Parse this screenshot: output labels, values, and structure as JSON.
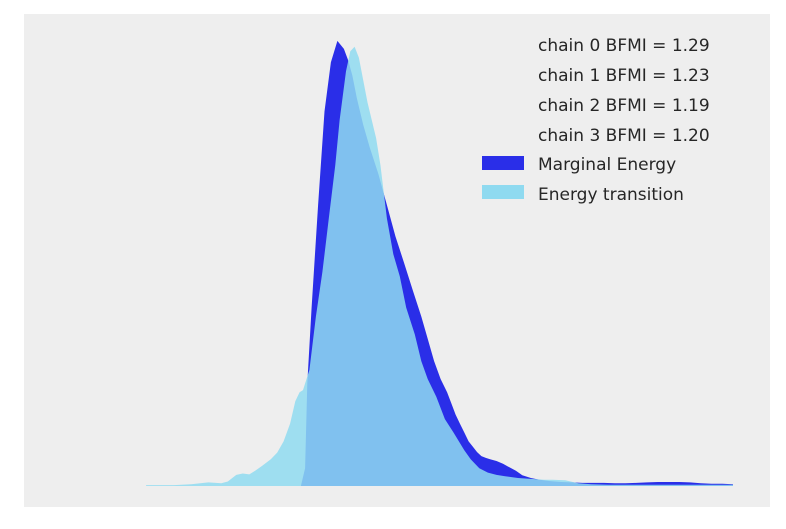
{
  "chart_data": {
    "type": "area",
    "title": "",
    "xlabel": "",
    "ylabel": "",
    "x_ticks_visible": false,
    "y_ticks_visible": false,
    "grid": false,
    "background": "#eeeeee",
    "legend": {
      "placement": "top-right",
      "bfmi_entries": [
        "chain  0 BFMI = 1.29",
        "chain  1 BFMI = 1.23",
        "chain  2 BFMI = 1.19",
        "chain  3 BFMI = 1.20"
      ]
    },
    "series": [
      {
        "name": "Marginal Energy",
        "color": "#2a2ee8",
        "opacity": 1.0,
        "x": [
          -0.005,
          0.005,
          0.01,
          0.02,
          0.035,
          0.05,
          0.065,
          0.08,
          0.095,
          0.105,
          0.115,
          0.125,
          0.14,
          0.155,
          0.175,
          0.195,
          0.215,
          0.235,
          0.255,
          0.275,
          0.29,
          0.305,
          0.32,
          0.335,
          0.345,
          0.355,
          0.365,
          0.375,
          0.385,
          0.395,
          0.405,
          0.415,
          0.425,
          0.435,
          0.45,
          0.465,
          0.48,
          0.495,
          0.51,
          0.53,
          0.55,
          0.575,
          0.6,
          0.625,
          0.65,
          0.675,
          0.7,
          0.725,
          0.75,
          0.775,
          0.8,
          0.825,
          0.85,
          0.875,
          0.9,
          0.925,
          0.95,
          0.975,
          1.0
        ],
        "y": [
          0.0,
          0.04,
          0.23,
          0.4,
          0.63,
          0.84,
          0.95,
          0.998,
          0.98,
          0.955,
          0.92,
          0.87,
          0.81,
          0.76,
          0.7,
          0.63,
          0.56,
          0.5,
          0.44,
          0.38,
          0.33,
          0.28,
          0.24,
          0.21,
          0.185,
          0.16,
          0.14,
          0.12,
          0.1,
          0.088,
          0.076,
          0.067,
          0.063,
          0.06,
          0.056,
          0.05,
          0.042,
          0.034,
          0.024,
          0.018,
          0.014,
          0.011,
          0.009,
          0.008,
          0.007,
          0.007,
          0.007,
          0.006,
          0.006,
          0.007,
          0.008,
          0.009,
          0.009,
          0.009,
          0.008,
          0.006,
          0.005,
          0.005,
          0.004
        ]
      },
      {
        "name": "Energy transition",
        "color": "#8fdaf0",
        "opacity": 0.85,
        "x": [
          -0.365,
          -0.34,
          -0.3,
          -0.26,
          -0.22,
          -0.19,
          -0.175,
          -0.155,
          -0.14,
          -0.125,
          -0.11,
          -0.095,
          -0.075,
          -0.06,
          -0.045,
          -0.03,
          -0.018,
          -0.008,
          0.0,
          0.015,
          0.03,
          0.045,
          0.06,
          0.075,
          0.085,
          0.1,
          0.11,
          0.12,
          0.13,
          0.14,
          0.15,
          0.16,
          0.17,
          0.18,
          0.195,
          0.21,
          0.225,
          0.24,
          0.26,
          0.275,
          0.29,
          0.31,
          0.33,
          0.35,
          0.375,
          0.39,
          0.41,
          0.43,
          0.45,
          0.47,
          0.5,
          0.53,
          0.56,
          0.58,
          0.61,
          0.64,
          0.67,
          0.71,
          0.75,
          0.8,
          0.85,
          0.9,
          0.95,
          1.0
        ],
        "y": [
          0.002,
          0.002,
          0.002,
          0.004,
          0.008,
          0.006,
          0.01,
          0.025,
          0.028,
          0.026,
          0.035,
          0.045,
          0.06,
          0.075,
          0.1,
          0.14,
          0.19,
          0.21,
          0.215,
          0.26,
          0.38,
          0.48,
          0.6,
          0.72,
          0.82,
          0.93,
          0.975,
          0.985,
          0.96,
          0.91,
          0.86,
          0.82,
          0.78,
          0.72,
          0.6,
          0.52,
          0.47,
          0.4,
          0.34,
          0.28,
          0.24,
          0.2,
          0.15,
          0.12,
          0.08,
          0.06,
          0.04,
          0.03,
          0.025,
          0.022,
          0.018,
          0.016,
          0.014,
          0.014,
          0.013,
          0.006,
          0.004,
          0.003,
          0.003,
          0.003,
          0.003,
          0.003,
          0.003,
          0.003
        ]
      }
    ]
  }
}
